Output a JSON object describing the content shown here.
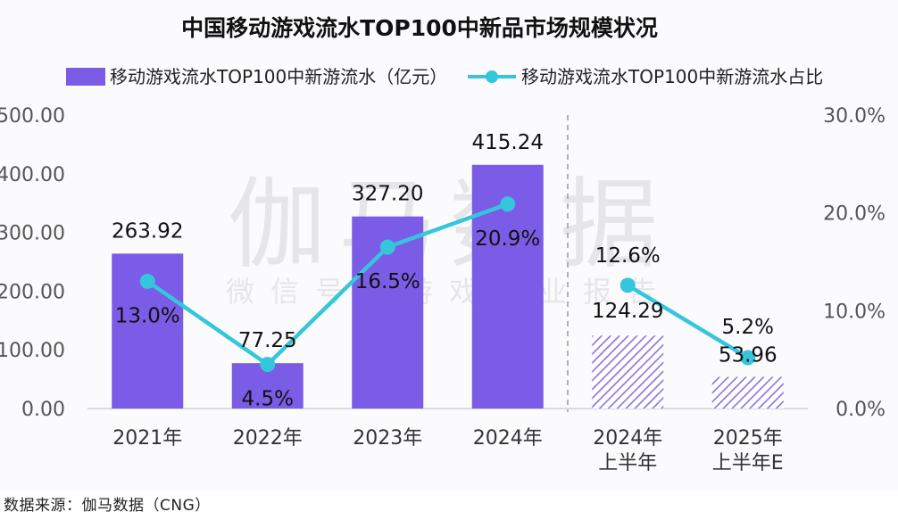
{
  "source_note": "数据来源：伽马数据（CNG）",
  "watermark": {
    "main": "伽马数据",
    "sub": "微信号：游戏产业报告"
  },
  "colors": {
    "bar": "#7b5ce6",
    "bar_hatch": "#8b72e0",
    "line": "#35c6dc",
    "divider": "#9a9a9a",
    "axis_text": "#555555",
    "label_text": "#111111"
  },
  "chart_data": {
    "type": "bar",
    "title": "中国移动游戏流水TOP100中新品市场规模状况",
    "categories": [
      [
        "2021年"
      ],
      [
        "2022年"
      ],
      [
        "2023年"
      ],
      [
        "2024年"
      ],
      [
        "2024年",
        "上半年"
      ],
      [
        "2025年",
        "上半年E"
      ]
    ],
    "series": [
      {
        "name": "移动游戏流水TOP100中新游流水（亿元）",
        "type": "bar",
        "axis": "left",
        "values": [
          263.92,
          77.25,
          327.2,
          415.24,
          124.29,
          53.96
        ],
        "labels": [
          "263.92",
          "77.25",
          "327.20",
          "415.24",
          "124.29",
          "53.96"
        ],
        "hatched": [
          false,
          false,
          false,
          false,
          true,
          true
        ]
      },
      {
        "name": "移动游戏流水TOP100中新游流水占比",
        "type": "line",
        "axis": "right",
        "values": [
          13.0,
          4.5,
          16.5,
          20.9,
          12.6,
          5.2
        ],
        "labels": [
          "13.0%",
          "4.5%",
          "16.5%",
          "20.9%",
          "12.6%",
          "5.2%"
        ],
        "segments": [
          [
            0,
            3
          ],
          [
            4,
            5
          ]
        ]
      }
    ],
    "y_left": {
      "lim": [
        0,
        500
      ],
      "ticks": [
        "0.00",
        "100.00",
        "200.00",
        "300.00",
        "400.00",
        "500.00"
      ]
    },
    "y_right": {
      "lim": [
        0,
        30
      ],
      "ticks": [
        "0.0%",
        "10.0%",
        "20.0%",
        "30.0%"
      ]
    },
    "legend_position": "top",
    "divider_after_category": 3,
    "grid": false
  }
}
